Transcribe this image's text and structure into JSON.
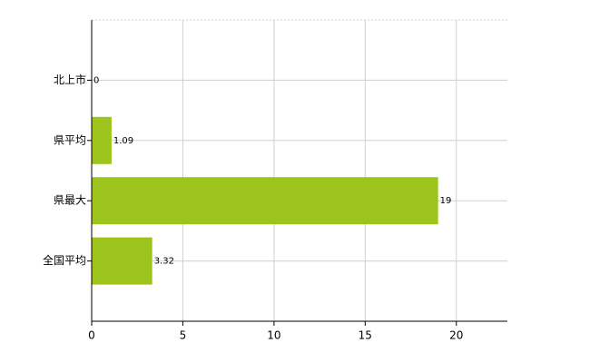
{
  "chart_data": {
    "type": "hbar",
    "categories": [
      "北上市",
      "県平均",
      "県最大",
      "全国平均"
    ],
    "values": [
      0,
      1.09,
      19,
      3.32
    ],
    "color": "#9dc41c",
    "xlim": [
      0,
      22.8
    ],
    "xticks": [
      0,
      5,
      10,
      15,
      20
    ],
    "grid": true
  }
}
